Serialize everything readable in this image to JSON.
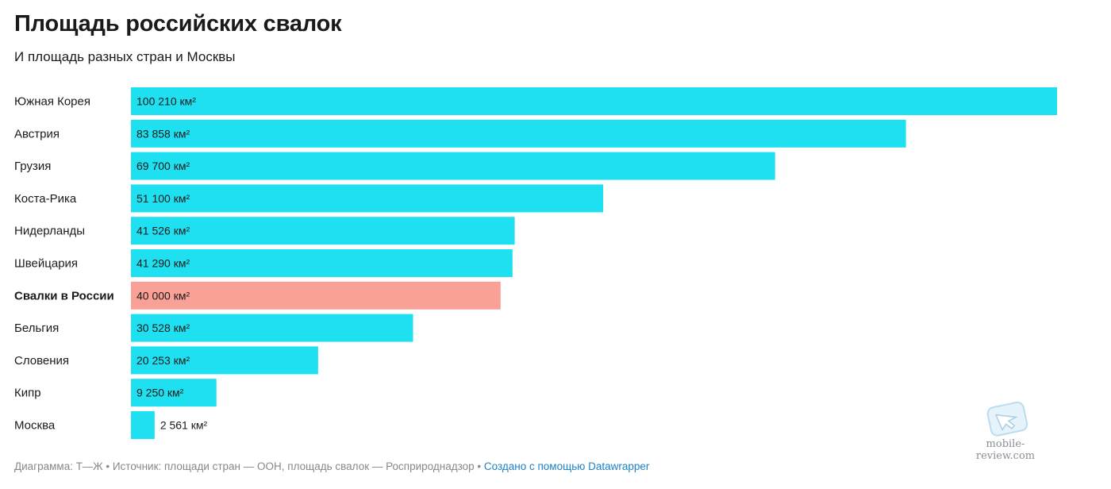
{
  "title": "Площадь российских свалок",
  "subtitle": "И площадь разных стран и Москвы",
  "footer": {
    "credit": "Диаграмма: Т—Ж • Источник: площади стран — ООН, площадь свалок — Росприроднадзор •",
    "link": "Создано с помощью Datawrapper"
  },
  "watermark": "mobile-review.com",
  "colors": {
    "bar": "#1ee0f0",
    "highlight": "#f9a196"
  },
  "chart_data": {
    "type": "bar",
    "orientation": "horizontal",
    "unit": "км²",
    "categories": [
      "Южная Корея",
      "Австрия",
      "Грузия",
      "Коста-Рика",
      "Нидерланды",
      "Швейцария",
      "Свалки в России",
      "Бельгия",
      "Словения",
      "Кипр",
      "Москва"
    ],
    "values": [
      100210,
      83858,
      69700,
      51100,
      41526,
      41290,
      40000,
      30528,
      20253,
      9250,
      2561
    ],
    "value_labels": [
      "100 210 км²",
      "83 858 км²",
      "69 700 км²",
      "51 100 км²",
      "41 526 км²",
      "41 290 км²",
      "40 000 км²",
      "30 528 км²",
      "20 253 км²",
      "9 250 км²",
      "2 561 км²"
    ],
    "highlighted": [
      "Свалки в России"
    ],
    "xlim": [
      0,
      100210
    ]
  }
}
